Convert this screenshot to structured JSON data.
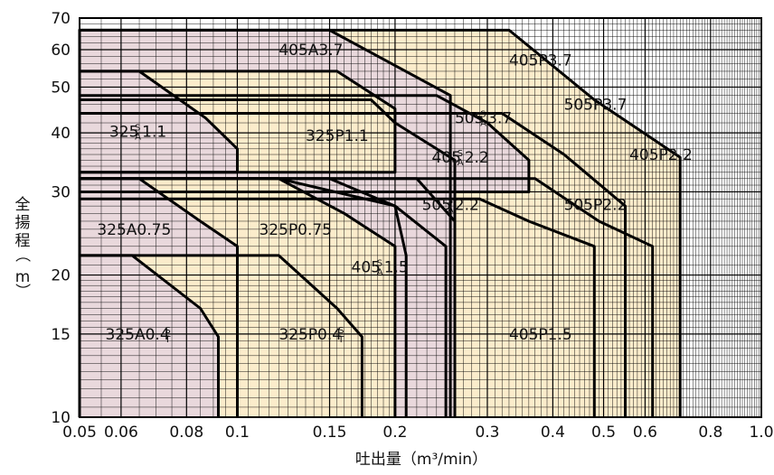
{
  "chart_data": {
    "type": "area",
    "title": "",
    "xlabel": "吐出量（m³/min）",
    "ylabel": "全揚程（m）",
    "x_scale": "log",
    "y_scale": "log",
    "xlim": [
      0.05,
      1.0
    ],
    "ylim": [
      10,
      70
    ],
    "x_ticks": [
      "0.05",
      "0.06",
      "0.08",
      "0.1",
      "0.15",
      "0.2",
      "0.3",
      "0.4",
      "0.5",
      "0.6",
      "0.8",
      "1.0"
    ],
    "y_ticks": [
      "10",
      "15",
      "20",
      "30",
      "40",
      "50",
      "60",
      "70"
    ],
    "grid": true,
    "series_colors": {
      "A": "#e9d8dc",
      "P": "#fbeccb"
    },
    "regions": [
      {
        "name": "405P3.7",
        "label": "405P3.7",
        "group": "P",
        "points": [
          [
            0.05,
            10
          ],
          [
            0.05,
            66
          ],
          [
            0.33,
            66
          ],
          [
            0.48,
            47
          ],
          [
            0.7,
            35.5
          ],
          [
            0.7,
            10
          ]
        ]
      },
      {
        "name": "405A3.7",
        "label": "405A3.7",
        "group": "A",
        "points": [
          [
            0.05,
            10
          ],
          [
            0.05,
            66
          ],
          [
            0.15,
            66
          ],
          [
            0.255,
            48
          ],
          [
            0.255,
            10
          ]
        ]
      },
      {
        "name": "505P3.7",
        "label": "505P3.7",
        "group": "P",
        "points": [
          [
            0.05,
            10
          ],
          [
            0.05,
            44
          ],
          [
            0.32,
            44
          ],
          [
            0.42,
            36
          ],
          [
            0.55,
            28
          ],
          [
            0.55,
            10
          ]
        ]
      },
      {
        "name": "405P2.2",
        "label": "405P2.2",
        "group": "P",
        "points": [
          [
            0.05,
            10
          ],
          [
            0.05,
            32
          ],
          [
            0.37,
            32
          ],
          [
            0.49,
            26
          ],
          [
            0.62,
            23
          ],
          [
            0.62,
            10
          ]
        ]
      },
      {
        "name": "505P2.2",
        "label": "505P2.2",
        "group": "P",
        "points": [
          [
            0.05,
            10
          ],
          [
            0.05,
            29
          ],
          [
            0.29,
            29
          ],
          [
            0.36,
            26
          ],
          [
            0.48,
            23
          ],
          [
            0.48,
            10
          ]
        ]
      },
      {
        "name": "505SA2.2",
        "label": "505",
        "sup": "S",
        "sub": "A",
        "suffix": "2.2",
        "group": "A",
        "points": [
          [
            0.05,
            10
          ],
          [
            0.05,
            32
          ],
          [
            0.22,
            32
          ],
          [
            0.26,
            26
          ],
          [
            0.26,
            10
          ]
        ]
      },
      {
        "name": "405P1.5",
        "label": "405P1.5",
        "group": "P",
        "points": [
          [
            0.05,
            10
          ],
          [
            0.05,
            32
          ],
          [
            0.15,
            32
          ],
          [
            0.2,
            28
          ],
          [
            0.25,
            23
          ],
          [
            0.25,
            10
          ]
        ]
      },
      {
        "name": "505SA3.7",
        "label": "505",
        "sup": "S",
        "sub": "A",
        "suffix": "3.7",
        "group": "A",
        "points": [
          [
            0.05,
            10
          ],
          [
            0.05,
            48
          ],
          [
            0.24,
            48
          ],
          [
            0.3,
            42
          ],
          [
            0.36,
            35
          ],
          [
            0.36,
            30
          ],
          [
            0.05,
            30
          ]
        ]
      },
      {
        "name": "405SA2.2",
        "label": "405",
        "sup": "S",
        "sub": "A",
        "suffix": "2.2",
        "group": "A",
        "points": [
          [
            0.05,
            10
          ],
          [
            0.05,
            47
          ],
          [
            0.18,
            47
          ],
          [
            0.2,
            42
          ],
          [
            0.26,
            35
          ],
          [
            0.26,
            10
          ]
        ]
      },
      {
        "name": "325P1.1",
        "label": "325P1.1",
        "group": "P",
        "points": [
          [
            0.05,
            10
          ],
          [
            0.05,
            54
          ],
          [
            0.155,
            54
          ],
          [
            0.2,
            45
          ],
          [
            0.2,
            33
          ],
          [
            0.05,
            33
          ]
        ]
      },
      {
        "name": "325SA1.1",
        "label": "325",
        "sup": "S",
        "sub": "A",
        "suffix": "1.1",
        "group": "A",
        "points": [
          [
            0.05,
            10
          ],
          [
            0.05,
            54
          ],
          [
            0.065,
            54
          ],
          [
            0.087,
            43
          ],
          [
            0.1,
            37
          ],
          [
            0.1,
            33
          ],
          [
            0.05,
            33
          ]
        ]
      },
      {
        "name": "405SA1.5",
        "label": "405",
        "sup": "S",
        "sub": "A",
        "suffix": "1.5",
        "group": "A",
        "points": [
          [
            0.05,
            10
          ],
          [
            0.05,
            32
          ],
          [
            0.12,
            32
          ],
          [
            0.2,
            28
          ],
          [
            0.21,
            22
          ],
          [
            0.21,
            10
          ]
        ]
      },
      {
        "name": "325P0.75",
        "label": "325P0.75",
        "group": "P",
        "points": [
          [
            0.05,
            10
          ],
          [
            0.05,
            32
          ],
          [
            0.12,
            32
          ],
          [
            0.16,
            27
          ],
          [
            0.2,
            23
          ],
          [
            0.2,
            10
          ]
        ]
      },
      {
        "name": "325A0.75",
        "label": "325A0.75",
        "group": "A",
        "points": [
          [
            0.05,
            10
          ],
          [
            0.05,
            32
          ],
          [
            0.065,
            32
          ],
          [
            0.085,
            26
          ],
          [
            0.1,
            23
          ],
          [
            0.1,
            10
          ]
        ]
      },
      {
        "name": "325P0.4ST",
        "label": "325P0.4",
        "sup": "S",
        "sub": "T",
        "suffix": "",
        "group": "P",
        "points": [
          [
            0.05,
            10
          ],
          [
            0.05,
            22
          ],
          [
            0.12,
            22
          ],
          [
            0.155,
            17
          ],
          [
            0.173,
            14.8
          ],
          [
            0.173,
            10
          ]
        ]
      },
      {
        "name": "325A0.4ST",
        "label": "325A0.4",
        "sup": "S",
        "sub": "T",
        "suffix": "",
        "group": "A",
        "points": [
          [
            0.05,
            10
          ],
          [
            0.05,
            22
          ],
          [
            0.063,
            22
          ],
          [
            0.085,
            17
          ],
          [
            0.092,
            14.8
          ],
          [
            0.092,
            10
          ]
        ]
      }
    ],
    "labels": [
      {
        "text": "405A3.7",
        "x": 0.12,
        "y": 60
      },
      {
        "text": "405P3.7",
        "x": 0.33,
        "y": 57
      },
      {
        "text": "505P3.7",
        "x": 0.42,
        "y": 46
      },
      {
        "text": "505",
        "sup": "S",
        "sub": "A",
        "suffix": "3.7",
        "x": 0.26,
        "y": 43
      },
      {
        "text": "325P1.1",
        "x": 0.135,
        "y": 39.5
      },
      {
        "text": "325",
        "sup": "S",
        "sub": "A",
        "suffix": "1.1",
        "x": 0.057,
        "y": 40.3
      },
      {
        "text": "405",
        "sup": "S",
        "sub": "A",
        "suffix": "2.2",
        "x": 0.235,
        "y": 35.5
      },
      {
        "text": "405P2.2",
        "x": 0.56,
        "y": 36
      },
      {
        "text": "505",
        "sup": "S",
        "sub": "A",
        "suffix": "2.2",
        "x": 0.225,
        "y": 28.2
      },
      {
        "text": "505P2.2",
        "x": 0.42,
        "y": 28.2
      },
      {
        "text": "325A0.75",
        "x": 0.054,
        "y": 25
      },
      {
        "text": "325P0.75",
        "x": 0.11,
        "y": 25
      },
      {
        "text": "405",
        "sup": "S",
        "sub": "A",
        "suffix": "1.5",
        "x": 0.165,
        "y": 20.8
      },
      {
        "text": "325A0.4",
        "sup": "S",
        "sub": "T",
        "suffix": "",
        "x": 0.056,
        "y": 15
      },
      {
        "text": "325P0.4",
        "sup": "S",
        "sub": "T",
        "suffix": "",
        "x": 0.12,
        "y": 15
      },
      {
        "text": "405P1.5",
        "x": 0.33,
        "y": 15
      }
    ]
  }
}
